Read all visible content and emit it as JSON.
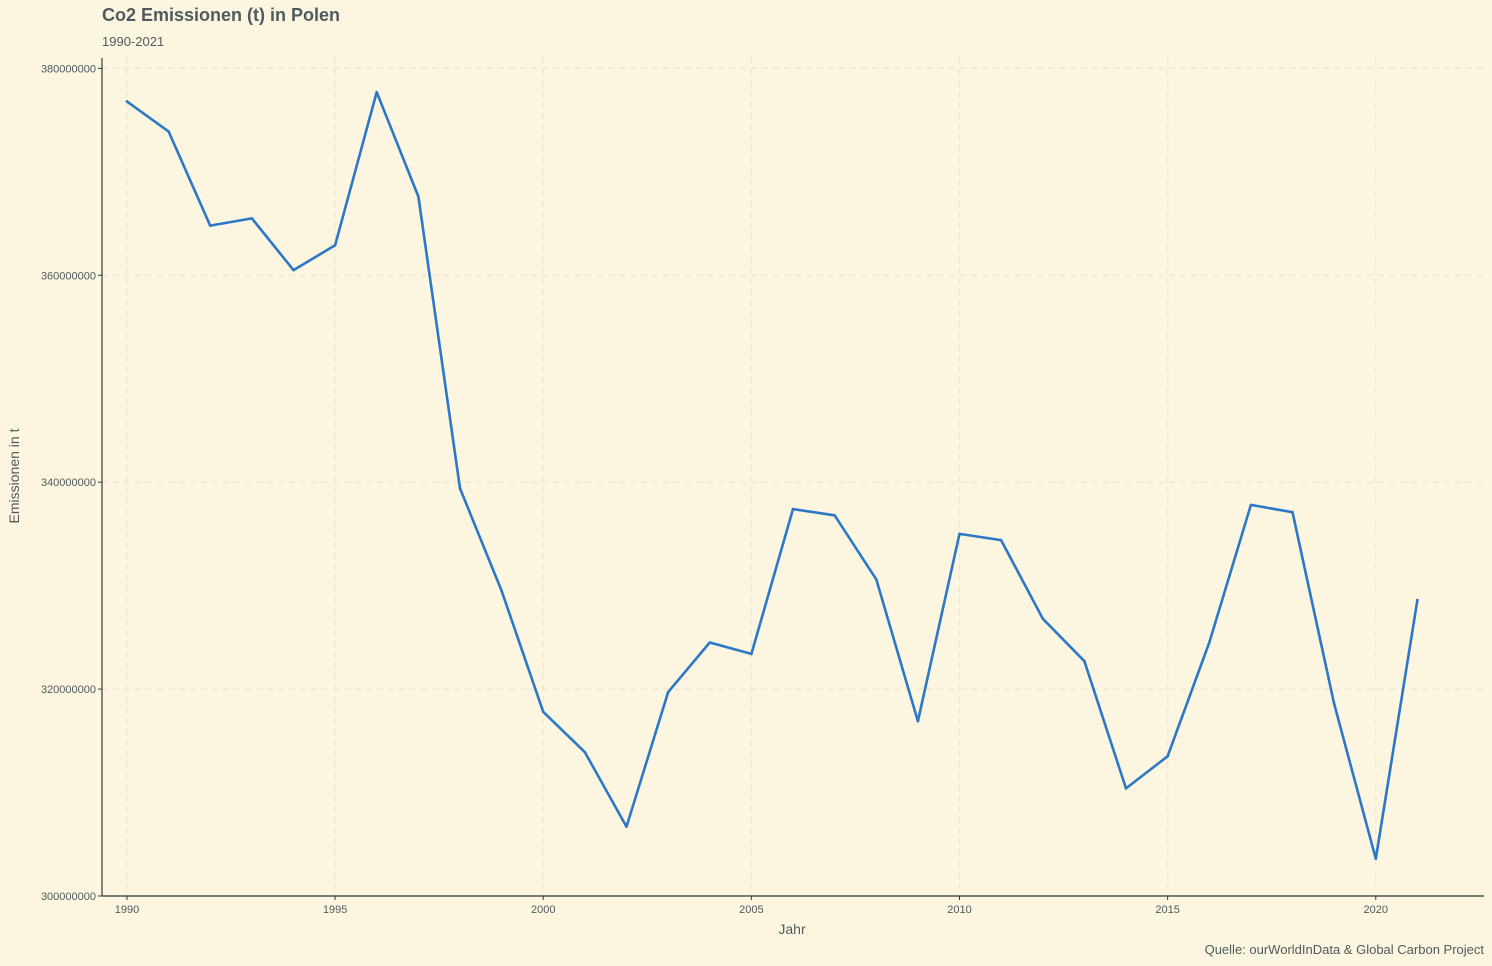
{
  "header": {
    "title": "Co2 Emissionen (t) in Polen",
    "subtitle": "1990-2021"
  },
  "footer": {
    "caption": "Quelle: ourWorldInData & Global Carbon Project"
  },
  "colors": {
    "background": "#fcf5e0",
    "line": "#2b78c6",
    "grid": "#efe4cb",
    "axis": "#2f3b3e",
    "text": "#4f5b5e"
  },
  "chart_data": {
    "type": "line",
    "title": "Co2 Emissionen (t) in Polen",
    "subtitle": "1990-2021",
    "xlabel": "Jahr",
    "ylabel": "Emissionen in t",
    "xlim": [
      1989.4,
      2022.6
    ],
    "ylim": [
      300000000,
      381000000
    ],
    "x_ticks": [
      1990,
      1995,
      2000,
      2005,
      2010,
      2015,
      2020
    ],
    "x_tick_labels": [
      "1990",
      "1995",
      "2000",
      "2005",
      "2010",
      "2015",
      "2020"
    ],
    "y_ticks": [
      300000000,
      320000000,
      340000000,
      360000000,
      380000000
    ],
    "y_tick_labels": [
      "300000000",
      "320000000",
      "340000000",
      "360000000",
      "380000000"
    ],
    "grid": true,
    "legend": "none",
    "x": [
      1990,
      1991,
      1992,
      1993,
      1994,
      1995,
      1996,
      1997,
      1998,
      1999,
      2000,
      2001,
      2002,
      2003,
      2004,
      2005,
      2006,
      2007,
      2008,
      2009,
      2010,
      2011,
      2012,
      2013,
      2014,
      2015,
      2016,
      2017,
      2018,
      2019,
      2020,
      2021
    ],
    "series": [
      {
        "values": [
          376800000,
          373900000,
          364800000,
          365500000,
          360500000,
          362900000,
          377700000,
          367600000,
          339400000,
          329500000,
          317800000,
          313900000,
          306700000,
          319700000,
          324500000,
          323400000,
          337400000,
          336800000,
          330600000,
          316900000,
          335000000,
          334400000,
          326800000,
          322700000,
          310400000,
          313500000,
          324500000,
          337800000,
          337100000,
          318600000,
          303600000,
          328600000
        ]
      }
    ]
  }
}
